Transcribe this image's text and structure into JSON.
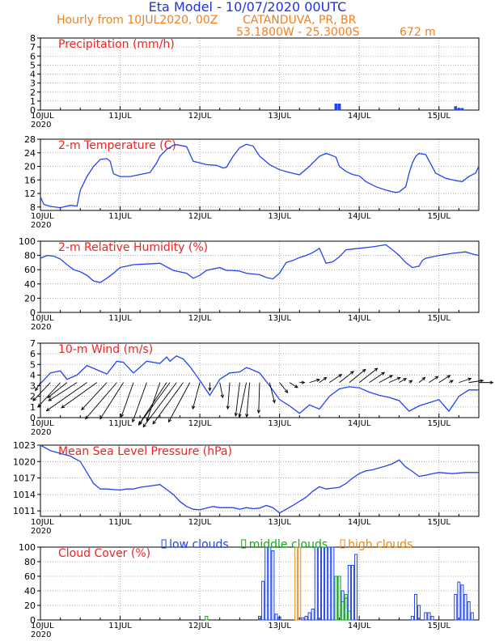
{
  "header": {
    "title": "Eta Model - 10/07/2020 00UTC",
    "subtitle_left": "Hourly from 10JUL2020, 00Z",
    "location": "CATANDUVA, PR, BR",
    "coords": "53.1800W - 25.3000S",
    "elevation": "672  m",
    "title_color": "#2233dd",
    "subtitle_color": "#f08020"
  },
  "colors": {
    "series": "#2244ee",
    "label": "#ee2222",
    "low": "#2244ee",
    "middle": "#11aa11",
    "high": "#ee8811",
    "vector": "#000000"
  },
  "x_axis": {
    "hours_range": [
      0,
      132
    ],
    "ticks": [
      {
        "hour": 0,
        "label": "10JUL",
        "sub": "2020"
      },
      {
        "hour": 24,
        "label": "11JUL"
      },
      {
        "hour": 48,
        "label": "12JUL"
      },
      {
        "hour": 72,
        "label": "13JUL"
      },
      {
        "hour": 96,
        "label": "14JUL"
      },
      {
        "hour": 120,
        "label": "15JUL"
      }
    ]
  },
  "chart_data": [
    {
      "type": "bar",
      "title": "Precipitation (mm/h)",
      "ylim": [
        0,
        8
      ],
      "yticks": [
        0,
        1,
        2,
        3,
        4,
        5,
        6,
        7,
        8
      ],
      "x": [
        89,
        90,
        125,
        126,
        127
      ],
      "values": [
        0.7,
        0.7,
        0.4,
        0.2,
        0.2
      ]
    },
    {
      "type": "line",
      "title": "2-m Temperature (C)",
      "ylim": [
        7,
        28
      ],
      "yticks": [
        8,
        12,
        16,
        20,
        24,
        28
      ],
      "x": [
        0,
        1,
        3,
        6,
        9,
        11,
        12,
        14,
        16,
        18,
        20,
        21,
        22,
        24,
        27,
        30,
        33,
        35,
        36,
        38,
        40,
        41,
        44,
        46,
        48,
        50,
        53,
        55,
        56,
        58,
        60,
        62,
        64,
        66,
        69,
        72,
        75,
        78,
        81,
        84,
        86,
        87,
        89,
        90,
        92,
        94,
        96,
        98,
        101,
        104,
        107,
        108,
        110,
        111,
        112,
        113,
        114,
        116,
        119,
        122,
        125,
        127,
        129,
        131,
        132
      ],
      "values": [
        11,
        8.8,
        8.2,
        7.8,
        8.5,
        8.3,
        13,
        17,
        20,
        22,
        22.3,
        21.5,
        17.8,
        17,
        17,
        17.6,
        18.2,
        21,
        23,
        25,
        26.2,
        26.4,
        25.8,
        21.5,
        21,
        20.5,
        20.3,
        19.5,
        19.7,
        23,
        25.5,
        26.5,
        26,
        23,
        20.5,
        19,
        18.2,
        17.5,
        20,
        23,
        23.8,
        23.5,
        22.7,
        20,
        18.5,
        17.6,
        17.2,
        15.5,
        14,
        13,
        12.3,
        12.5,
        14,
        18,
        21,
        23,
        23.8,
        23.5,
        18,
        16.5,
        15.8,
        15.5,
        17,
        18,
        20
      ]
    },
    {
      "type": "line",
      "title": "2-m Relative Humidity (%)",
      "ylim": [
        0,
        100
      ],
      "yticks": [
        0,
        20,
        40,
        60,
        80,
        100
      ],
      "x": [
        0,
        2,
        4,
        6,
        8,
        10,
        12,
        14,
        16,
        18,
        20,
        22,
        24,
        28,
        32,
        36,
        40,
        44,
        46,
        48,
        50,
        52,
        54,
        56,
        58,
        60,
        62,
        64,
        66,
        68,
        70,
        72,
        74,
        76,
        78,
        80,
        82,
        84,
        86,
        88,
        90,
        92,
        94,
        96,
        100,
        104,
        106,
        108,
        110,
        112,
        114,
        115,
        116,
        118,
        120,
        124,
        128,
        130,
        132
      ],
      "values": [
        76,
        80,
        79,
        75,
        67,
        60,
        57,
        52,
        44,
        42,
        48,
        55,
        63,
        67,
        68,
        69,
        59,
        55,
        48,
        52,
        59,
        61,
        63,
        59,
        59,
        58,
        55,
        54,
        53,
        49,
        47,
        55,
        70,
        73,
        77,
        80,
        84,
        90,
        69,
        71,
        78,
        88,
        89,
        90,
        92,
        95,
        88,
        80,
        70,
        63,
        65,
        73,
        76,
        78,
        80,
        83,
        85,
        82,
        80
      ]
    },
    {
      "type": "vector",
      "title": "10-m Wind (m/s)",
      "ylim": [
        0,
        7
      ],
      "yticks": [
        0,
        1,
        2,
        3,
        4,
        5,
        6,
        7
      ],
      "arrow_baseline": 3.3,
      "speed": {
        "x": [
          0,
          3,
          6,
          8,
          11,
          14,
          17,
          20,
          23,
          25,
          28,
          32,
          36,
          38,
          39,
          41,
          43,
          45,
          48,
          51,
          54,
          57,
          60,
          62,
          63,
          66,
          69,
          72,
          75,
          78,
          81,
          84,
          87,
          90,
          93,
          96,
          99,
          102,
          105,
          108,
          111,
          114,
          117,
          120,
          123,
          126,
          129,
          132
        ],
        "values": [
          3.2,
          4.2,
          4.4,
          3.6,
          4,
          4.9,
          4.5,
          4.1,
          5.3,
          5.2,
          4.2,
          5.3,
          5.1,
          5.7,
          5.3,
          5.8,
          5.5,
          4.8,
          3.5,
          2.1,
          3.6,
          4.2,
          4.3,
          4.7,
          4.6,
          4.2,
          3,
          1.7,
          1.1,
          0.4,
          1.2,
          0.8,
          2,
          2.7,
          2.9,
          2.8,
          2.4,
          2.1,
          1.9,
          1.6,
          0.6,
          1.1,
          1.4,
          1.7,
          0.6,
          2,
          2.6,
          2.6
        ]
      },
      "u": [
        -0.5,
        -1.7,
        -2.2,
        -1.9,
        -2.8,
        -4,
        -3.5,
        -2.5,
        -3.1,
        -2.3,
        -1.2,
        -1.4,
        -1.3,
        -2.7,
        -3.1,
        -3.3,
        -3,
        -2.1,
        -0.7,
        0,
        0.3,
        -0.2,
        -0.4,
        -0.7,
        -0.3,
        -0.1,
        0.5,
        0.8,
        0.8,
        0.5,
        1,
        0.7,
        1.2,
        1.4,
        1.6,
        1.8,
        1.5,
        1.3,
        1.1,
        0.7,
        0.3,
        0.6,
        0.9,
        1.1,
        0.4,
        1.2,
        1.4,
        1.4
      ],
      "v": [
        -0.8,
        -1.8,
        -2.4,
        -1.5,
        -1.8,
        -2.8,
        -2.5,
        -2.7,
        -3.6,
        -3.6,
        -3.4,
        -3.9,
        -3.8,
        -4.1,
        -4.2,
        -4.4,
        -4.1,
        -3.9,
        -2.6,
        -0.8,
        -1.5,
        -2.6,
        -3.3,
        -3.4,
        -3.4,
        -3,
        -2,
        -1,
        -0.5,
        0,
        0.3,
        0.5,
        0.8,
        1.1,
        1.3,
        1.4,
        1,
        0.7,
        0.5,
        0.4,
        0.2,
        0.5,
        0.6,
        0.7,
        0.2,
        0.4,
        0.2,
        0
      ]
    },
    {
      "type": "line",
      "title": "Mean Sea Level Pressure (hPa)",
      "ylim": [
        1010,
        1023
      ],
      "yticks": [
        1011,
        1014,
        1017,
        1020,
        1023
      ],
      "x": [
        0,
        3,
        6,
        9,
        12,
        14,
        16,
        18,
        20,
        24,
        26,
        28,
        30,
        36,
        40,
        42,
        44,
        46,
        48,
        50,
        52,
        54,
        56,
        58,
        60,
        62,
        64,
        66,
        68,
        70,
        72,
        74,
        76,
        80,
        82,
        84,
        86,
        90,
        92,
        94,
        96,
        98,
        100,
        104,
        106,
        108,
        110,
        112,
        114,
        116,
        118,
        120,
        124,
        128,
        130,
        132
      ],
      "values": [
        1023,
        1022,
        1021.5,
        1021,
        1020,
        1018,
        1016,
        1015,
        1015,
        1014.8,
        1015,
        1015,
        1015.3,
        1015.8,
        1014,
        1012.7,
        1011.8,
        1011.3,
        1011.2,
        1011.5,
        1011.8,
        1011.6,
        1011.6,
        1011.6,
        1011.3,
        1011.6,
        1011.4,
        1011.5,
        1012,
        1011.6,
        1010.6,
        1011.3,
        1012,
        1013.5,
        1014.6,
        1015.4,
        1015,
        1015.3,
        1016,
        1017,
        1017.8,
        1018.3,
        1018.5,
        1019.2,
        1019.6,
        1020.3,
        1019,
        1018.2,
        1017.3,
        1017.5,
        1017.8,
        1018,
        1017.8,
        1018,
        1018,
        1018
      ]
    },
    {
      "type": "bar",
      "title": "Cloud Cover (%)",
      "legend": [
        "low clouds",
        "middle clouds",
        "high clouds"
      ],
      "ylim": [
        0,
        100
      ],
      "yticks": [
        0,
        20,
        40,
        60,
        80,
        100
      ],
      "series": [
        {
          "name": "low clouds",
          "x": [
            66,
            67,
            68,
            69,
            70,
            71,
            72,
            78,
            79,
            80,
            81,
            82,
            83,
            84,
            85,
            86,
            87,
            88,
            89,
            90,
            91,
            92,
            93,
            94,
            95,
            112,
            113,
            114,
            116,
            117,
            118,
            125,
            126,
            127,
            128,
            129,
            130
          ],
          "values": [
            5,
            53,
            100,
            100,
            95,
            8,
            4,
            3,
            3,
            5,
            10,
            15,
            100,
            100,
            100,
            100,
            100,
            100,
            60,
            60,
            40,
            30,
            75,
            75,
            90,
            5,
            35,
            20,
            10,
            10,
            5,
            35,
            52,
            48,
            35,
            25,
            10
          ]
        },
        {
          "name": "middle clouds",
          "x": [
            50,
            89,
            90,
            91,
            92,
            93
          ],
          "values": [
            5,
            60,
            60,
            25,
            35,
            12
          ]
        },
        {
          "name": "high clouds",
          "x": [
            77,
            78
          ],
          "values": [
            100,
            100
          ]
        }
      ]
    }
  ]
}
